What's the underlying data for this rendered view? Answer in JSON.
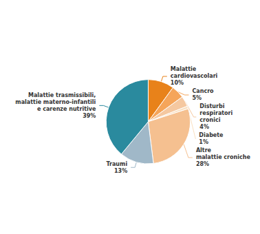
{
  "chart_data": {
    "type": "pie",
    "categories": [
      "Malattie\ncardiovascolari",
      "Cancro",
      "Disturbi\nrespiratori\ncronici",
      "Diabete",
      "Altre\nmalattie croniche",
      "Traumi",
      "Malattie trasmissibili,\nmalattie materno-infantili\ne carenze nutritive"
    ],
    "values": [
      10,
      5,
      4,
      1,
      28,
      13,
      39
    ],
    "value_labels": [
      "10%",
      "5%",
      "4%",
      "1%",
      "28%",
      "13%",
      "39%"
    ],
    "colors": [
      "#E8821A",
      "#F5A55A",
      "#F5C8A0",
      "#FAE0C0",
      "#F5C090",
      "#A0B8C8",
      "#2A8A9E"
    ],
    "data_labels": true
  }
}
